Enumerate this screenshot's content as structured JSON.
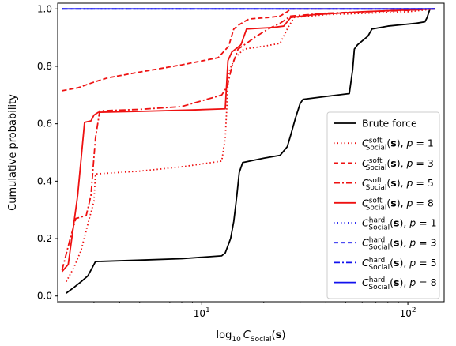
{
  "chart_data": {
    "type": "line",
    "xscale": "log",
    "xlim": [
      2.0,
      150
    ],
    "ylim": [
      -0.02,
      1.02
    ],
    "xlabel": {
      "main": "log",
      "base": "10",
      "symbol": "C",
      "sub": "Social",
      "arg": "(s)"
    },
    "ylabel": "Cumulative probability",
    "x_ticks": [
      {
        "value": 10,
        "base": "10",
        "exp": "1"
      },
      {
        "value": 100,
        "base": "10",
        "exp": "2"
      }
    ],
    "y_ticks": [
      {
        "value": 0.0,
        "label": "0.0"
      },
      {
        "value": 0.2,
        "label": "0.2"
      },
      {
        "value": 0.4,
        "label": "0.4"
      },
      {
        "value": 0.6,
        "label": "0.6"
      },
      {
        "value": 0.8,
        "label": "0.8"
      },
      {
        "value": 1.0,
        "label": "1.0"
      }
    ],
    "legend_position": "lower-right",
    "series": [
      {
        "name": "Brute force",
        "color": "#000000",
        "dash": "solid",
        "points": [
          [
            2.2,
            0.01
          ],
          [
            2.4,
            0.03
          ],
          [
            2.6,
            0.05
          ],
          [
            2.8,
            0.07
          ],
          [
            2.95,
            0.1
          ],
          [
            3.05,
            0.12
          ],
          [
            5,
            0.125
          ],
          [
            8,
            0.13
          ],
          [
            12.5,
            0.14
          ],
          [
            13,
            0.15
          ],
          [
            13.8,
            0.2
          ],
          [
            14.3,
            0.26
          ],
          [
            14.8,
            0.35
          ],
          [
            15.2,
            0.43
          ],
          [
            15.8,
            0.465
          ],
          [
            20,
            0.48
          ],
          [
            24,
            0.49
          ],
          [
            26,
            0.52
          ],
          [
            27,
            0.56
          ],
          [
            28.5,
            0.62
          ],
          [
            30,
            0.67
          ],
          [
            31,
            0.685
          ],
          [
            40,
            0.695
          ],
          [
            52,
            0.705
          ],
          [
            54,
            0.79
          ],
          [
            55,
            0.86
          ],
          [
            57,
            0.875
          ],
          [
            64,
            0.905
          ],
          [
            67,
            0.93
          ],
          [
            80,
            0.94
          ],
          [
            110,
            0.95
          ],
          [
            121,
            0.955
          ],
          [
            124,
            0.97
          ],
          [
            128,
            1.0
          ],
          [
            135,
            1.0
          ]
        ]
      },
      {
        "name": "soft-p1",
        "color": "#ee1111",
        "dash": "dotted",
        "points": [
          [
            2.2,
            0.05
          ],
          [
            2.4,
            0.1
          ],
          [
            2.6,
            0.16
          ],
          [
            2.8,
            0.25
          ],
          [
            3.0,
            0.33
          ],
          [
            3.05,
            0.425
          ],
          [
            5,
            0.435
          ],
          [
            8,
            0.45
          ],
          [
            12.5,
            0.47
          ],
          [
            13,
            0.55
          ],
          [
            13.5,
            0.78
          ],
          [
            14.5,
            0.83
          ],
          [
            16,
            0.86
          ],
          [
            20,
            0.87
          ],
          [
            24,
            0.88
          ],
          [
            26,
            0.93
          ],
          [
            28,
            0.97
          ],
          [
            40,
            0.98
          ],
          [
            100,
            0.99
          ],
          [
            135,
            1.0
          ]
        ]
      },
      {
        "name": "soft-p3",
        "color": "#ee1111",
        "dash": "dashed",
        "points": [
          [
            2.1,
            0.715
          ],
          [
            2.5,
            0.725
          ],
          [
            3.0,
            0.745
          ],
          [
            3.5,
            0.76
          ],
          [
            5,
            0.78
          ],
          [
            8,
            0.805
          ],
          [
            12,
            0.83
          ],
          [
            13.5,
            0.87
          ],
          [
            14.3,
            0.93
          ],
          [
            15.2,
            0.945
          ],
          [
            16,
            0.955
          ],
          [
            17,
            0.965
          ],
          [
            21,
            0.97
          ],
          [
            24,
            0.975
          ],
          [
            26,
            0.99
          ],
          [
            27,
            1.0
          ],
          [
            135,
            1.0
          ]
        ]
      },
      {
        "name": "soft-p5",
        "color": "#ee1111",
        "dash": "dashdot",
        "points": [
          [
            2.1,
            0.09
          ],
          [
            2.3,
            0.2
          ],
          [
            2.45,
            0.27
          ],
          [
            2.75,
            0.28
          ],
          [
            2.9,
            0.35
          ],
          [
            3.05,
            0.55
          ],
          [
            3.2,
            0.645
          ],
          [
            5,
            0.65
          ],
          [
            8,
            0.66
          ],
          [
            12.5,
            0.7
          ],
          [
            13.3,
            0.73
          ],
          [
            14,
            0.8
          ],
          [
            15,
            0.86
          ],
          [
            16.5,
            0.88
          ],
          [
            18,
            0.9
          ],
          [
            21,
            0.93
          ],
          [
            24,
            0.95
          ],
          [
            27,
            0.975
          ],
          [
            40,
            0.985
          ],
          [
            100,
            0.995
          ],
          [
            135,
            1.0
          ]
        ]
      },
      {
        "name": "soft-p8",
        "color": "#ee1111",
        "dash": "solid",
        "points": [
          [
            2.1,
            0.085
          ],
          [
            2.25,
            0.11
          ],
          [
            2.5,
            0.35
          ],
          [
            2.7,
            0.605
          ],
          [
            2.9,
            0.61
          ],
          [
            3.0,
            0.63
          ],
          [
            3.15,
            0.64
          ],
          [
            5,
            0.643
          ],
          [
            9,
            0.648
          ],
          [
            13,
            0.652
          ],
          [
            13.4,
            0.82
          ],
          [
            14,
            0.85
          ],
          [
            15.5,
            0.875
          ],
          [
            16.5,
            0.93
          ],
          [
            22,
            0.935
          ],
          [
            25,
            0.94
          ],
          [
            27,
            0.97
          ],
          [
            35,
            0.98
          ],
          [
            60,
            0.99
          ],
          [
            135,
            1.0
          ]
        ]
      },
      {
        "name": "hard-p1",
        "color": "#1111ee",
        "dash": "dotted",
        "points": [
          [
            2.1,
            1.0
          ],
          [
            135,
            1.0
          ]
        ]
      },
      {
        "name": "hard-p3",
        "color": "#1111ee",
        "dash": "dashed",
        "points": [
          [
            2.1,
            1.0
          ],
          [
            135,
            1.0
          ]
        ]
      },
      {
        "name": "hard-p5",
        "color": "#1111ee",
        "dash": "dashdot",
        "points": [
          [
            2.1,
            1.0
          ],
          [
            135,
            1.0
          ]
        ]
      },
      {
        "name": "hard-p8",
        "color": "#1111ee",
        "dash": "solid",
        "points": [
          [
            2.1,
            1.0
          ],
          [
            135,
            1.0
          ]
        ]
      }
    ],
    "legend": [
      {
        "series": "Brute force",
        "kind": "plain",
        "text": "Brute force"
      },
      {
        "series": "soft-p1",
        "kind": "formula",
        "sym": "C",
        "sup": "soft",
        "sub": "Social",
        "arg": "(s)",
        "pval": "p = 1"
      },
      {
        "series": "soft-p3",
        "kind": "formula",
        "sym": "C",
        "sup": "soft",
        "sub": "Social",
        "arg": "(s)",
        "pval": "p = 3"
      },
      {
        "series": "soft-p5",
        "kind": "formula",
        "sym": "C",
        "sup": "soft",
        "sub": "Social",
        "arg": "(s)",
        "pval": "p = 5"
      },
      {
        "series": "soft-p8",
        "kind": "formula",
        "sym": "C",
        "sup": "soft",
        "sub": "Social",
        "arg": "(s)",
        "pval": "p = 8"
      },
      {
        "series": "hard-p1",
        "kind": "formula",
        "sym": "C",
        "sup": "hard",
        "sub": "Social",
        "arg": "(s)",
        "pval": "p = 1"
      },
      {
        "series": "hard-p3",
        "kind": "formula",
        "sym": "C",
        "sup": "hard",
        "sub": "Social",
        "arg": "(s)",
        "pval": "p = 3"
      },
      {
        "series": "hard-p5",
        "kind": "formula",
        "sym": "C",
        "sup": "hard",
        "sub": "Social",
        "arg": "(s)",
        "pval": "p = 5"
      },
      {
        "series": "hard-p8",
        "kind": "formula",
        "sym": "C",
        "sup": "hard",
        "sub": "Social",
        "arg": "(s)",
        "pval": "p = 8"
      }
    ]
  }
}
